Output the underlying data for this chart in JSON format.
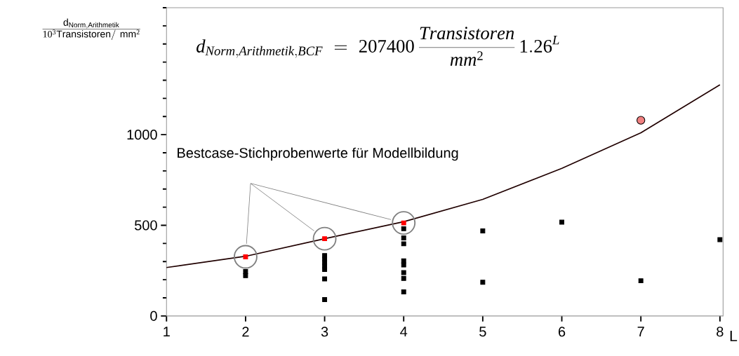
{
  "chart_data": {
    "type": "scatter",
    "ylabel": "\\frac{\\mathrm{d}_{\\mathrm{Norm,Arithmetik}}}{\\mathrm{10^{3}Transistoren/\\ mm^{2}}}",
    "xlabel": "L",
    "annotations": [
      "d_{Norm,Arithmetik,BCF}\\;=\\;207400\\,\\frac{Transistoren}{mm^{2}}\\,1.26^{L}",
      "Bestcase-Stichprobenwerte für Modellbildung"
    ],
    "xlim": [
      1,
      8.04
    ],
    "ylim": [
      0,
      1700
    ],
    "xticks": [
      1,
      2,
      3,
      4,
      5,
      6,
      7,
      8
    ],
    "yticks": [
      0,
      {
        "value": 100,
        "label": null
      },
      {
        "value": 200,
        "label": null
      },
      {
        "value": 300,
        "label": null
      },
      {
        "value": 400,
        "label": null
      },
      500,
      {
        "value": 600,
        "label": null
      },
      {
        "value": 700,
        "label": null
      },
      {
        "value": 800,
        "label": null
      },
      {
        "value": 900,
        "label": null
      },
      1000,
      {
        "value": 1100,
        "label": null
      },
      {
        "value": 1200,
        "label": null
      },
      {
        "value": 1300,
        "label": null
      },
      {
        "value": 1400,
        "label": null
      },
      {
        "value": 1500,
        "label": null
      },
      {
        "value": 1600,
        "label": null
      },
      {
        "value": 1700,
        "label": null
      }
    ],
    "marker": "square",
    "grid": false,
    "series": [
      {
        "type": "line",
        "color": "#200000",
        "marker": "none",
        "x": [
          1,
          2,
          3,
          4,
          5,
          6,
          7,
          8
        ],
        "values": [
          267,
          329,
          426,
          520,
          643,
          814,
          1010,
          1275
        ]
      },
      {
        "color": "#000000",
        "x": [
          2,
          2,
          3,
          3,
          3,
          3,
          3,
          3,
          3,
          4,
          4,
          4,
          4,
          4,
          4,
          4,
          4,
          5,
          5,
          6,
          7,
          8
        ],
        "values": [
          222,
          245,
          333,
          314,
          295,
          275,
          256,
          204,
          90,
          481,
          430,
          398,
          304,
          281,
          239,
          207,
          133,
          469,
          186,
          517,
          194,
          421
        ]
      },
      {
        "color": "#ff0000",
        "x": [
          2,
          3,
          4
        ],
        "values": [
          326,
          426,
          513
        ]
      },
      {
        "color": "#f08080",
        "marker": "circle",
        "x": [
          7
        ],
        "values": [
          1079
        ]
      }
    ]
  }
}
